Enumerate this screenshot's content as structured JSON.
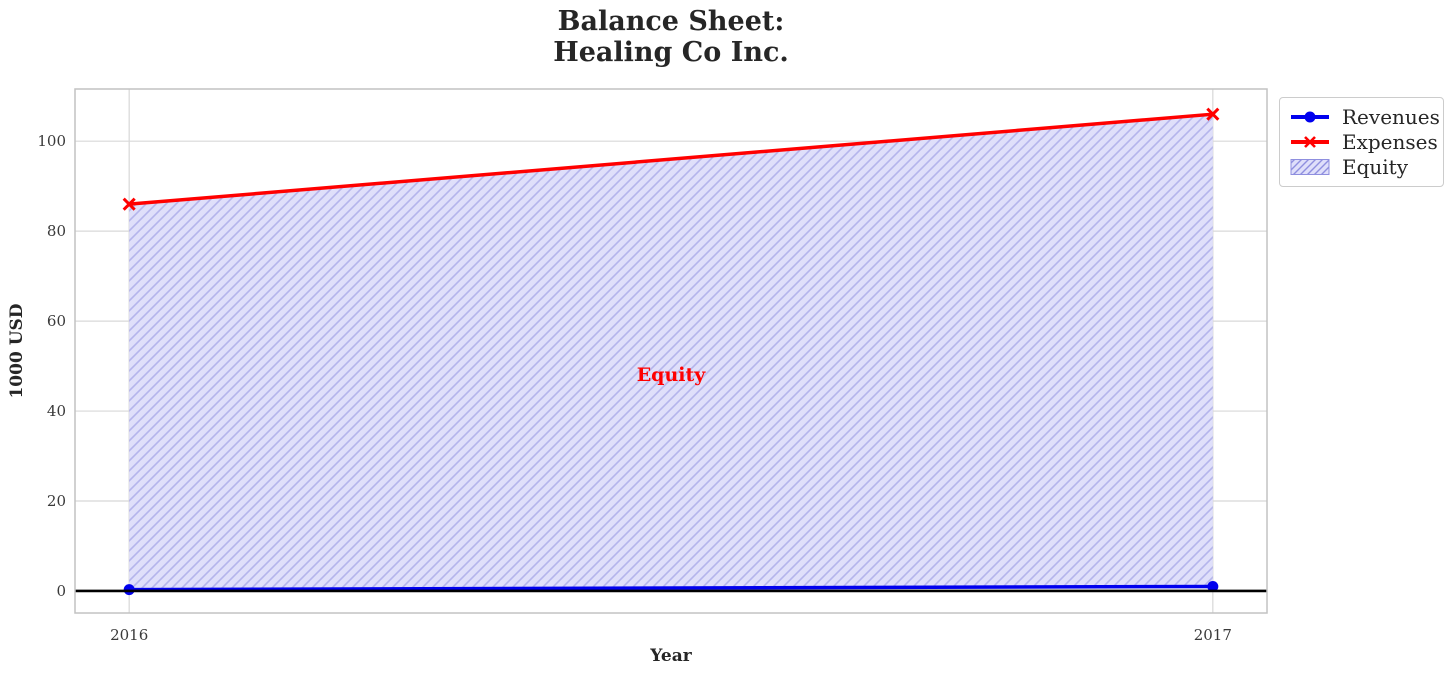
{
  "chart_data": {
    "type": "line",
    "title": "Balance Sheet:\nHealing Co Inc.",
    "title_lines": [
      "Balance Sheet:",
      "Healing Co Inc."
    ],
    "xlabel": "Year",
    "ylabel": "1000 USD",
    "x": [
      2016,
      2017
    ],
    "xticks": [
      2016,
      2017
    ],
    "yticks": [
      0,
      20,
      40,
      60,
      80,
      100
    ],
    "xlim": [
      2015.95,
      2017.05
    ],
    "ylim": [
      -4.9,
      111.6
    ],
    "grid": true,
    "legend_position": "outside upper right",
    "background_color": "#ffffff",
    "grid_color": "#d8d8d8",
    "axis_border_color": "#c2c2c2",
    "tick_label_color": "#3a3a3a",
    "text_color": "#262626",
    "zero_line": {
      "y": 0,
      "color": "#000000"
    },
    "series": [
      {
        "name": "Revenues",
        "values": [
          0.3,
          1.0
        ],
        "color": "#0000ee",
        "marker": "circle"
      },
      {
        "name": "Expenses",
        "values": [
          86.0,
          106.0
        ],
        "color": "#ff0000",
        "marker": "x"
      }
    ],
    "area": {
      "label": "Equity",
      "between": [
        "Revenues",
        "Expenses"
      ],
      "fill_color": "#dfdffa",
      "hatch": "//",
      "hatch_color": "#b4b4ec",
      "legend_hatch_color": "#8f8fdf",
      "annotation": {
        "text": "Equity",
        "x": 2016.5,
        "y": 48,
        "color": "#ff0000"
      }
    }
  }
}
